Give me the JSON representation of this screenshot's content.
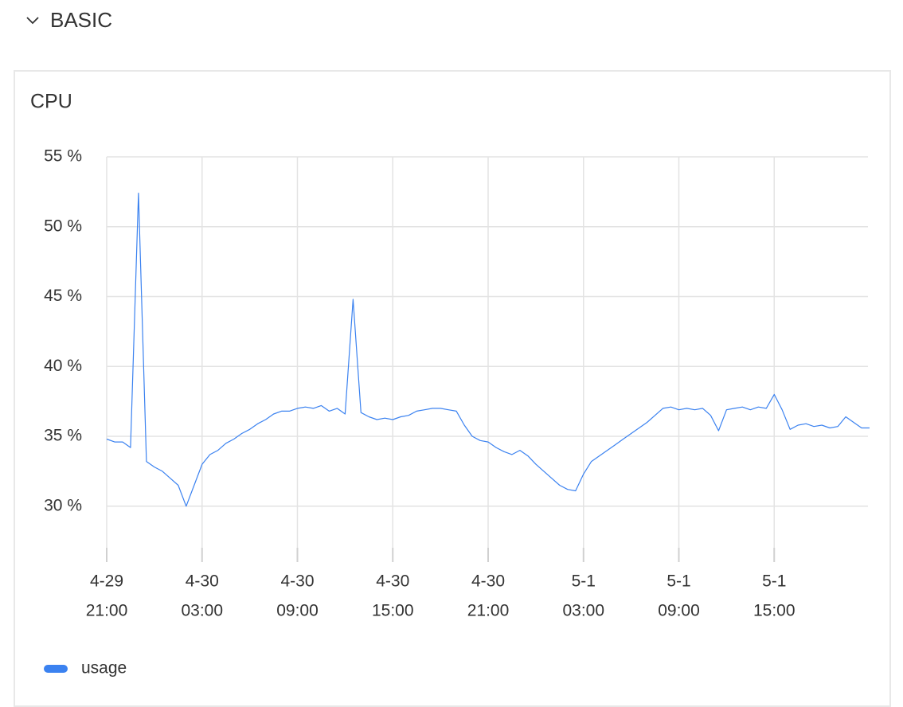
{
  "section": {
    "title": "BASIC"
  },
  "chart_data": {
    "type": "line",
    "title": "CPU",
    "x": [
      "4-29 21:00",
      "4-29 21:30",
      "4-29 22:00",
      "4-29 22:30",
      "4-29 23:00",
      "4-29 23:30",
      "4-30 00:00",
      "4-30 00:30",
      "4-30 01:00",
      "4-30 01:30",
      "4-30 02:00",
      "4-30 02:30",
      "4-30 03:00",
      "4-30 03:30",
      "4-30 04:00",
      "4-30 04:30",
      "4-30 05:00",
      "4-30 05:30",
      "4-30 06:00",
      "4-30 06:30",
      "4-30 07:00",
      "4-30 07:30",
      "4-30 08:00",
      "4-30 08:30",
      "4-30 09:00",
      "4-30 09:30",
      "4-30 10:00",
      "4-30 10:30",
      "4-30 11:00",
      "4-30 11:30",
      "4-30 12:00",
      "4-30 12:30",
      "4-30 13:00",
      "4-30 13:30",
      "4-30 14:00",
      "4-30 14:30",
      "4-30 15:00",
      "4-30 15:30",
      "4-30 16:00",
      "4-30 16:30",
      "4-30 17:00",
      "4-30 17:30",
      "4-30 18:00",
      "4-30 18:30",
      "4-30 19:00",
      "4-30 19:30",
      "4-30 20:00",
      "4-30 20:30",
      "4-30 21:00",
      "4-30 21:30",
      "4-30 22:00",
      "4-30 22:30",
      "4-30 23:00",
      "4-30 23:30",
      "5-1 00:00",
      "5-1 00:30",
      "5-1 01:00",
      "5-1 01:30",
      "5-1 02:00",
      "5-1 02:30",
      "5-1 03:00",
      "5-1 03:30",
      "5-1 04:00",
      "5-1 04:30",
      "5-1 05:00",
      "5-1 05:30",
      "5-1 06:00",
      "5-1 06:30",
      "5-1 07:00",
      "5-1 07:30",
      "5-1 08:00",
      "5-1 08:30",
      "5-1 09:00",
      "5-1 09:30",
      "5-1 10:00",
      "5-1 10:30",
      "5-1 11:00",
      "5-1 11:30",
      "5-1 12:00",
      "5-1 12:30",
      "5-1 13:00",
      "5-1 13:30",
      "5-1 14:00",
      "5-1 14:30",
      "5-1 15:00",
      "5-1 15:30",
      "5-1 16:00",
      "5-1 16:30",
      "5-1 17:00",
      "5-1 17:30",
      "5-1 18:00",
      "5-1 18:30",
      "5-1 19:00",
      "5-1 19:30",
      "5-1 20:00",
      "5-1 20:30",
      "5-1 21:00"
    ],
    "series": [
      {
        "name": "usage",
        "color": "#3b82f0",
        "values": [
          34.8,
          34.6,
          34.6,
          34.2,
          52.4,
          33.2,
          32.8,
          32.5,
          32.0,
          31.5,
          30.0,
          31.5,
          33.0,
          33.7,
          34.0,
          34.5,
          34.8,
          35.2,
          35.5,
          35.9,
          36.2,
          36.6,
          36.8,
          36.8,
          37.0,
          37.1,
          37.0,
          37.2,
          36.8,
          37.0,
          36.6,
          44.8,
          36.7,
          36.4,
          36.2,
          36.3,
          36.2,
          36.4,
          36.5,
          36.8,
          36.9,
          37.0,
          37.0,
          36.9,
          36.8,
          35.8,
          35.0,
          34.7,
          34.6,
          34.2,
          33.9,
          33.7,
          34.0,
          33.6,
          33.0,
          32.5,
          32.0,
          31.5,
          31.2,
          31.1,
          32.3,
          33.2,
          33.6,
          34.0,
          34.4,
          34.8,
          35.2,
          35.6,
          36.0,
          36.5,
          37.0,
          37.1,
          36.9,
          37.0,
          36.9,
          37.0,
          36.5,
          35.4,
          36.9,
          37.0,
          37.1,
          36.9,
          37.1,
          37.0,
          38.0,
          36.9,
          35.5,
          35.8,
          35.9,
          35.7,
          35.8,
          35.6,
          35.7,
          36.4,
          36.0,
          35.6,
          35.6
        ]
      }
    ],
    "xlim": [
      "4-29 21:00",
      "5-1 21:00"
    ],
    "xticks": [
      {
        "value": "4-29 21:00",
        "label": [
          "4-29",
          "21:00"
        ]
      },
      {
        "value": "4-30 03:00",
        "label": [
          "4-30",
          "03:00"
        ]
      },
      {
        "value": "4-30 09:00",
        "label": [
          "4-30",
          "09:00"
        ]
      },
      {
        "value": "4-30 15:00",
        "label": [
          "4-30",
          "15:00"
        ]
      },
      {
        "value": "4-30 21:00",
        "label": [
          "4-30",
          "21:00"
        ]
      },
      {
        "value": "5-1 03:00",
        "label": [
          "5-1",
          "03:00"
        ]
      },
      {
        "value": "5-1 09:00",
        "label": [
          "5-1",
          "09:00"
        ]
      },
      {
        "value": "5-1 15:00",
        "label": [
          "5-1",
          "15:00"
        ]
      }
    ],
    "ylim": [
      26,
      55
    ],
    "yticks": [
      {
        "value": 30,
        "label": "30 %"
      },
      {
        "value": 35,
        "label": "35 %"
      },
      {
        "value": 40,
        "label": "40 %"
      },
      {
        "value": 45,
        "label": "45 %"
      },
      {
        "value": 50,
        "label": "50 %"
      },
      {
        "value": 55,
        "label": "55 %"
      }
    ],
    "grid": true,
    "legend": "bottom-left"
  }
}
